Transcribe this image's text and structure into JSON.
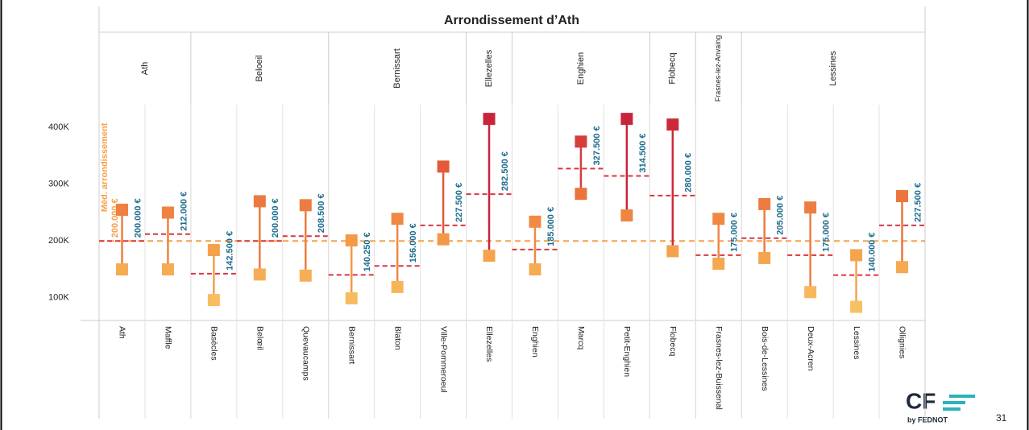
{
  "chart_data": {
    "type": "range",
    "title": "Arrondissement d’Ath",
    "groups": [
      {
        "name": "Ath",
        "span": 2
      },
      {
        "name": "Beloeil",
        "span": 3
      },
      {
        "name": "Bernissart",
        "span": 3
      },
      {
        "name": "Ellezelles",
        "span": 1
      },
      {
        "name": "Enghien",
        "span": 3
      },
      {
        "name": "Flobecq",
        "span": 1
      },
      {
        "name": "Frasnes-lez-Anvaing",
        "span": 1
      },
      {
        "name": "Lessines",
        "span": 4
      }
    ],
    "categories": [
      "Ath",
      "Maffle",
      "Basècles",
      "Belœil",
      "Quevaucamps",
      "Bernissart",
      "Blaton",
      "Ville-Pommeroeul",
      "Ellezelles",
      "Enghien",
      "Marcq",
      "Petit-Enghien",
      "Flobecq",
      "Frasnes-lez-Buissenal",
      "Bois-de-Lessines",
      "Deux-Acren",
      "Lessines",
      "Ollignies"
    ],
    "series": [
      {
        "name": "low",
        "values": [
          150000,
          150000,
          96000,
          141000,
          139000,
          99000,
          119000,
          203000,
          174000,
          150000,
          283000,
          245000,
          182000,
          160000,
          170000,
          110000,
          84000,
          154000
        ]
      },
      {
        "name": "high",
        "values": [
          255000,
          250000,
          184000,
          270000,
          263000,
          201000,
          239000,
          331000,
          415000,
          234000,
          375000,
          415000,
          405000,
          239000,
          265000,
          259000,
          175000,
          279000
        ]
      },
      {
        "name": "median",
        "color": "#d9363e",
        "values": [
          200000,
          212000,
          142500,
          200000,
          208500,
          140250,
          156000,
          227500,
          282500,
          185000,
          327500,
          314500,
          280000,
          175000,
          205000,
          175000,
          140000,
          227500
        ],
        "value_labels": [
          "200.000 €",
          "212.000 €",
          "142.500 €",
          "200.000 €",
          "208.500 €",
          "140.250 €",
          "156.000 €",
          "227.500 €",
          "282.500 €",
          "185.000 €",
          "327.500 €",
          "314.500 €",
          "280.000 €",
          "175.000 €",
          "205.000 €",
          "175.000 €",
          "140.000 €",
          "227.500 €"
        ]
      }
    ],
    "reference": {
      "label": "Méd. arrondissement",
      "value": 200000,
      "value_label": "200.000 €",
      "color": "#f5a04a"
    },
    "color_scale": [
      "#f9c86a",
      "#f4a04a",
      "#e8653a",
      "#c0143c"
    ],
    "ylim": [
      60000,
      440000
    ],
    "yticks": [
      {
        "value": 100000,
        "label": "100K"
      },
      {
        "value": 200000,
        "label": "200K"
      },
      {
        "value": 300000,
        "label": "300K"
      },
      {
        "value": 400000,
        "label": "400K"
      }
    ],
    "grid": true
  },
  "footer": {
    "logo": "CF",
    "logo_sub": "by FEDNOT",
    "page": "31"
  }
}
